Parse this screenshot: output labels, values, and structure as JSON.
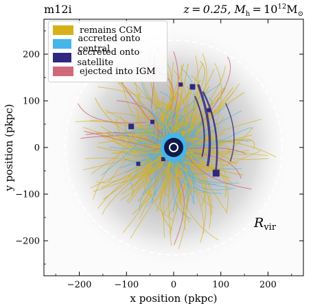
{
  "title_left": "m12i",
  "title_right": "z = 0.25, M",
  "title_right_sub": "h",
  "title_right_tail": " = 10",
  "title_right_sup": "12",
  "title_right_unit": "M",
  "title_right_unit_sub": "⊙",
  "rvir_label": "R",
  "rvir_sub": "vir",
  "colors": {
    "remains_cgm": "#d7b11a",
    "accreted_central": "#44b6ea",
    "accreted_satellite": "#30287f",
    "ejected_igm": "#d06a7a"
  },
  "chart_data": {
    "type": "scatter",
    "xlabel": "x position (pkpc)",
    "ylabel": "y position (pkpc)",
    "xlim": [
      -275,
      275
    ],
    "ylim": [
      -275,
      275
    ],
    "xticks": [
      -200,
      -100,
      0,
      100,
      200
    ],
    "yticks": [
      -200,
      -100,
      0,
      100,
      200
    ],
    "rvir": 230,
    "legend": {
      "placement": "top-left",
      "entries": [
        "remains CGM",
        "accreted onto central",
        "accreted onto satellite",
        "ejected into IGM"
      ]
    }
  }
}
